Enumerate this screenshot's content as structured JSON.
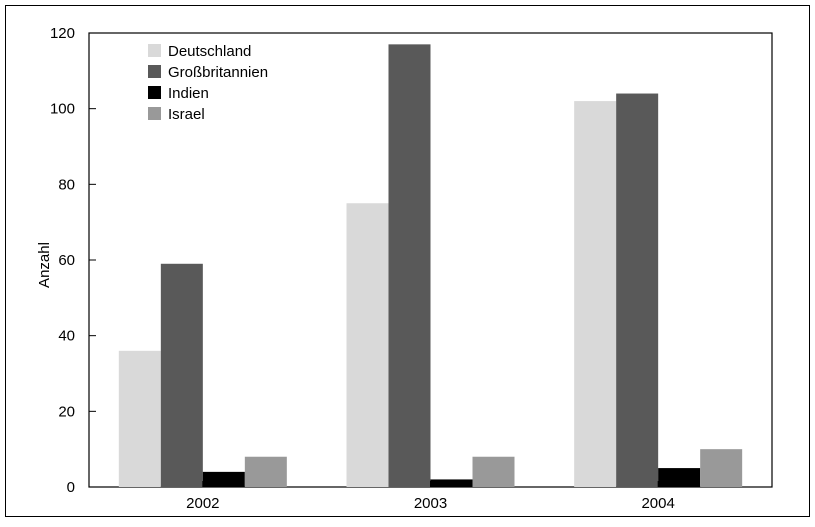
{
  "chart_data": {
    "type": "bar",
    "title": "",
    "xlabel": "",
    "ylabel": "Anzahl",
    "categories": [
      "2002",
      "2003",
      "2004"
    ],
    "ylim": [
      0,
      120
    ],
    "yticks": [
      0,
      20,
      40,
      60,
      80,
      100,
      120
    ],
    "grid": false,
    "legend_position": "top-left",
    "series": [
      {
        "name": "Deutschland",
        "color": "#d9d9d9",
        "values": [
          36,
          75,
          102
        ]
      },
      {
        "name": "Großbritannien",
        "color": "#595959",
        "values": [
          59,
          117,
          104
        ]
      },
      {
        "name": "Indien",
        "color": "#000000",
        "values": [
          4,
          2,
          5
        ]
      },
      {
        "name": "Israel",
        "color": "#999999",
        "values": [
          8,
          8,
          10
        ]
      }
    ]
  }
}
